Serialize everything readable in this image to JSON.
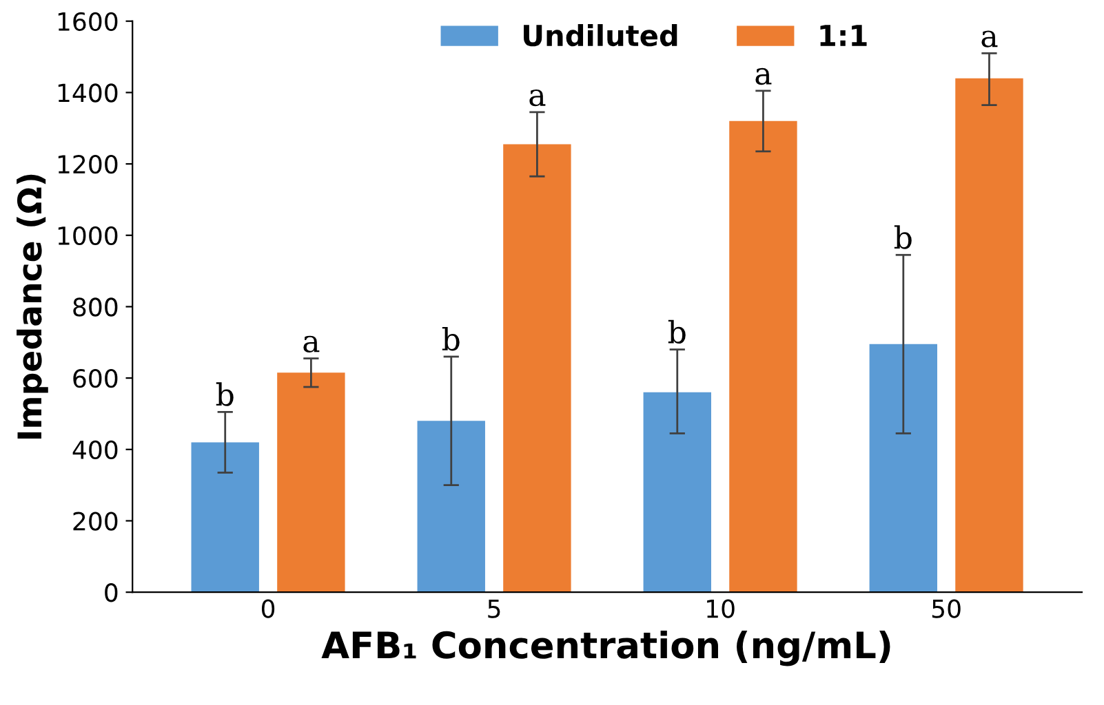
{
  "chart_data": {
    "type": "bar",
    "xlabel": "AFB₁ Concentration (ng/mL)",
    "ylabel": "Impedance (Ω)",
    "categories": [
      "0",
      "5",
      "10",
      "50"
    ],
    "series": [
      {
        "name": "Undiluted",
        "color": "#5b9bd5",
        "values": [
          420,
          480,
          560,
          695
        ],
        "errors": [
          [
            335,
            505
          ],
          [
            300,
            660
          ],
          [
            445,
            680
          ],
          [
            445,
            945
          ]
        ],
        "value_labels": [
          "b",
          "b",
          "b",
          "b"
        ]
      },
      {
        "name": "1:1",
        "color": "#ed7d31",
        "values": [
          615,
          1255,
          1320,
          1440
        ],
        "errors": [
          [
            575,
            655
          ],
          [
            1165,
            1345
          ],
          [
            1235,
            1405
          ],
          [
            1365,
            1510
          ]
        ],
        "value_labels": [
          "a",
          "a",
          "a",
          "a"
        ]
      }
    ],
    "ylim": [
      0,
      1600
    ],
    "yticks": [
      0,
      200,
      400,
      600,
      800,
      1000,
      1200,
      1400,
      1600
    ],
    "grid": false,
    "legend": "top"
  }
}
